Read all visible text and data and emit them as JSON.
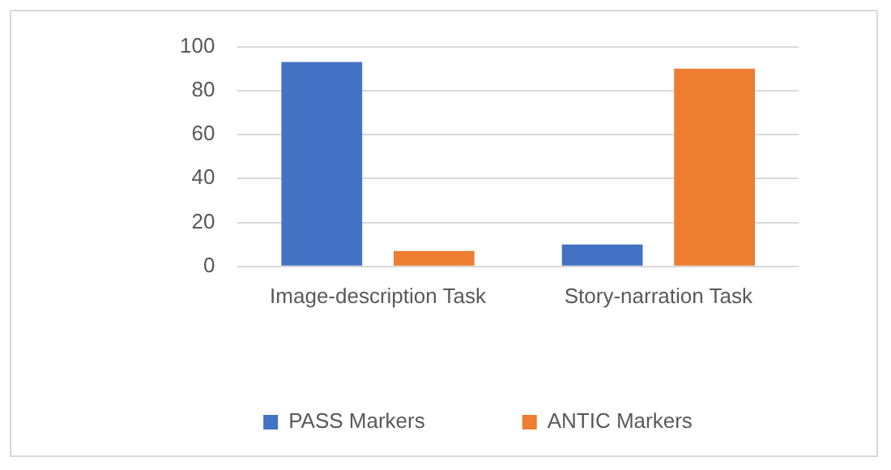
{
  "chart_data": {
    "type": "bar",
    "categories": [
      "Image-description Task",
      "Story-narration Task"
    ],
    "series": [
      {
        "name": "PASS Markers",
        "color": "#4472c4",
        "values": [
          93,
          10
        ]
      },
      {
        "name": "ANTIC Markers",
        "color": "#ed7d31",
        "values": [
          7,
          90
        ]
      }
    ],
    "ylim": [
      0,
      100
    ],
    "yticks": [
      0,
      20,
      40,
      60,
      80,
      100
    ],
    "grid": "y",
    "legend": "bottom"
  }
}
